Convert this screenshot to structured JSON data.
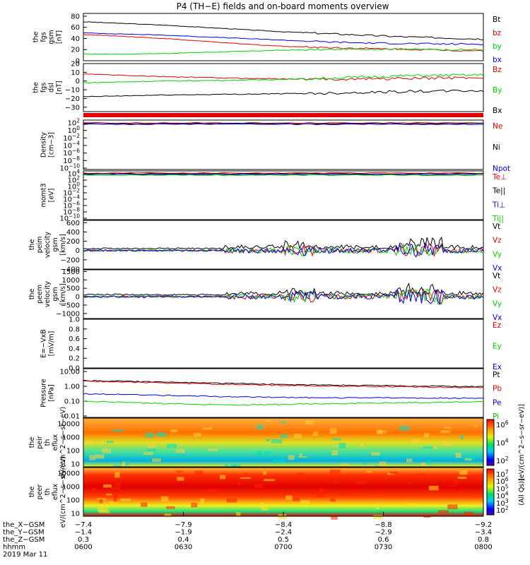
{
  "title": "P4 (TH−E) fields and on-board moments overview",
  "date": "2019 Mar 11",
  "orbit": {
    "rows": [
      {
        "label": "the_X−GSM",
        "values": [
          "−7.4",
          "−7.9",
          "−8.4",
          "−8.8",
          "−9.2"
        ]
      },
      {
        "label": "the_Y−GSM",
        "values": [
          "−1.4",
          "−1.9",
          "−2.4",
          "−2.9",
          "−3.4"
        ]
      },
      {
        "label": "the_Z−GSM",
        "values": [
          "0.3",
          "0.4",
          "0.5",
          "0.6",
          "0.8"
        ]
      },
      {
        "label": "hhmm",
        "values": [
          "0600",
          "0630",
          "0700",
          "0730",
          "0800"
        ]
      }
    ]
  },
  "colorbars": [
    {
      "label": "[eV/(cm^2−s−sr−eV)]",
      "ticks": [
        "10^6",
        "10^4",
        "10^2"
      ]
    },
    {
      "label": "(All Qs)]",
      "ticks": [
        "10^7",
        "10^6",
        "10^5",
        "10^4",
        "10^3",
        "10^2"
      ]
    }
  ],
  "colors": {
    "black": "#000000",
    "red": "#e00000",
    "green": "#00d000",
    "blue": "#0000e0"
  },
  "chart_data": [
    {
      "type": "line",
      "ylabel": "the fgs gsm [nT]",
      "ylim": [
        0,
        85
      ],
      "yticks": [
        "80",
        "60",
        "40",
        "20",
        "0"
      ],
      "series": [
        {
          "name": "Bt",
          "color": "#000000",
          "x": [
            0,
            0.1,
            0.2,
            0.3,
            0.4,
            0.5,
            0.6,
            0.7,
            0.8,
            0.9,
            1
          ],
          "values": [
            70,
            67,
            64,
            60,
            56,
            52,
            49,
            46,
            43,
            41,
            39
          ]
        },
        {
          "name": "bz",
          "color": "#e00000",
          "x": [
            0,
            0.1,
            0.2,
            0.3,
            0.4,
            0.5,
            0.6,
            0.7,
            0.8,
            0.9,
            1
          ],
          "values": [
            47,
            44,
            40,
            35,
            30,
            26,
            24,
            22,
            21,
            19,
            18
          ]
        },
        {
          "name": "by",
          "color": "#00d000",
          "x": [
            0,
            0.1,
            0.2,
            0.3,
            0.4,
            0.5,
            0.6,
            0.7,
            0.8,
            0.9,
            1
          ],
          "values": [
            12,
            12,
            13,
            15,
            17,
            19,
            20,
            21,
            21,
            20,
            20
          ]
        },
        {
          "name": "bx",
          "color": "#0000e0",
          "x": [
            0,
            0.1,
            0.2,
            0.3,
            0.4,
            0.5,
            0.6,
            0.7,
            0.8,
            0.9,
            1
          ],
          "values": [
            50,
            48,
            46,
            43,
            40,
            37,
            34,
            32,
            31,
            30,
            30
          ]
        }
      ]
    },
    {
      "type": "line",
      "ylabel": "the fgs dsl [nT]",
      "ylim": [
        -35,
        20
      ],
      "yticks": [
        "20",
        "10",
        "0",
        "−10",
        "−20",
        "−30"
      ],
      "series": [
        {
          "name": "Bz",
          "color": "#e00000",
          "x": [
            0,
            0.2,
            0.4,
            0.6,
            0.8,
            1
          ],
          "values": [
            8,
            5,
            3,
            2,
            3,
            4
          ]
        },
        {
          "name": "By",
          "color": "#00d000",
          "x": [
            0,
            0.2,
            0.4,
            0.6,
            0.8,
            1
          ],
          "values": [
            -2,
            0,
            1,
            3,
            6,
            7
          ]
        },
        {
          "name": "Bx",
          "color": "#000000",
          "x": [
            0,
            0.2,
            0.4,
            0.6,
            0.8,
            1
          ],
          "values": [
            -18,
            -16,
            -15,
            -14,
            -12,
            -11
          ]
        }
      ]
    },
    {
      "type": "line",
      "ylabel": "Density [cm−3]",
      "yticks": [
        "10^2",
        "10^0",
        "10^-2",
        "10^-4",
        "10^-6",
        "10^-8",
        "10^-10"
      ],
      "series": [
        {
          "name": "Ne",
          "color": "#e00000"
        },
        {
          "name": "Ni",
          "color": "#000000"
        },
        {
          "name": "Npot",
          "color": "#0000e0"
        }
      ]
    },
    {
      "type": "line",
      "ylabel": "momt3 [eV]",
      "yticks": [
        "10^4",
        "10^2",
        "10^0",
        "10^-2",
        "10^-4",
        "10^-6",
        "10^-8",
        "10^-10"
      ],
      "series": [
        {
          "name": "Te⊥",
          "color": "#e00000"
        },
        {
          "name": "Te||",
          "color": "#000000"
        },
        {
          "name": "Ti⊥",
          "color": "#0000e0"
        },
        {
          "name": "Ti||",
          "color": "#00d000"
        }
      ]
    },
    {
      "type": "line",
      "ylabel": "the peim velocity gsm [km/s]",
      "ylim": [
        -400,
        650
      ],
      "yticks": [
        "600",
        "400",
        "200",
        "0",
        "−200",
        "−400"
      ],
      "series": [
        {
          "name": "Vt",
          "color": "#000000"
        },
        {
          "name": "Vz",
          "color": "#e00000"
        },
        {
          "name": "Vy",
          "color": "#00d000"
        },
        {
          "name": "Vx",
          "color": "#0000e0"
        }
      ]
    },
    {
      "type": "line",
      "ylabel": "the peem velocity gsm [km/s]",
      "ylim": [
        -1300,
        1600
      ],
      "yticks": [
        "1500",
        "1000",
        "500",
        "0",
        "−500",
        "−1000"
      ],
      "series": [
        {
          "name": "Vt",
          "color": "#000000"
        },
        {
          "name": "Vz",
          "color": "#e00000"
        },
        {
          "name": "Vy",
          "color": "#00d000"
        },
        {
          "name": "Vx",
          "color": "#0000e0"
        }
      ]
    },
    {
      "type": "line",
      "ylabel": "E=−VxB [mV/m]",
      "ylim": [
        0,
        1
      ],
      "yticks": [
        "1.0",
        "0.8",
        "0.6",
        "0.4",
        "0.2",
        "0.0"
      ],
      "series": [
        {
          "name": "Ez",
          "color": "#e00000"
        },
        {
          "name": "Ey",
          "color": "#00d000"
        },
        {
          "name": "Ex",
          "color": "#0000e0"
        }
      ]
    },
    {
      "type": "line",
      "ylabel": "Pressure [nPa]",
      "yticks": [
        "10.00",
        "1.00",
        "0.10",
        "0.01"
      ],
      "series": [
        {
          "name": "Pt",
          "color": "#000000",
          "x": [
            0,
            0.2,
            0.4,
            0.6,
            0.8,
            1
          ],
          "values": [
            2.2,
            1.7,
            1.35,
            1.1,
            0.95,
            0.85
          ]
        },
        {
          "name": "Pb",
          "color": "#e00000",
          "x": [
            0,
            0.2,
            0.4,
            0.6,
            0.8,
            1
          ],
          "values": [
            2.0,
            1.5,
            1.15,
            0.95,
            0.82,
            0.75
          ]
        },
        {
          "name": "Pe",
          "color": "#0000e0",
          "x": [
            0,
            0.2,
            0.4,
            0.6,
            0.8,
            1
          ],
          "values": [
            0.28,
            0.22,
            0.17,
            0.15,
            0.15,
            0.14
          ]
        },
        {
          "name": "Pi",
          "color": "#00d000",
          "x": [
            0,
            0.2,
            0.4,
            0.6,
            0.8,
            1
          ],
          "values": [
            0.09,
            0.06,
            0.05,
            0.06,
            0.07,
            0.08
          ]
        }
      ]
    },
    {
      "type": "heatmap",
      "ylabel": "the peir th eflux eV/(cm^2−s−sr−eV)",
      "yticks": [
        "10000",
        "1000",
        "100",
        "10"
      ]
    },
    {
      "type": "heatmap",
      "ylabel": "the peer th eflux eV/(cm^2−s−sr−eV)",
      "yticks": [
        "10000",
        "1000",
        "100",
        "10"
      ]
    }
  ]
}
